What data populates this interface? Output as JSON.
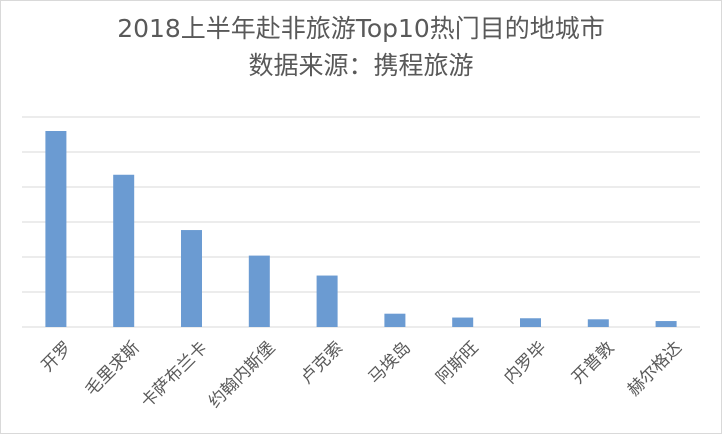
{
  "chart_data": {
    "type": "bar",
    "title": "2018上半年赴非旅游Top10热门目的地城市",
    "subtitle": "数据来源：携程旅游",
    "xlabel": "",
    "ylabel": "",
    "categories": [
      "开罗",
      "毛里求斯",
      "卡萨布兰卡",
      "约翰内斯堡",
      "卢克索",
      "马埃岛",
      "阿斯旺",
      "内罗毕",
      "开普敦",
      "赫尔格达"
    ],
    "values": [
      5.6,
      4.35,
      2.77,
      2.04,
      1.47,
      0.38,
      0.27,
      0.25,
      0.22,
      0.17
    ],
    "ylim": [
      0,
      6
    ],
    "grid": true,
    "legend": "none",
    "colors": {
      "bar": "#6b9bd2",
      "grid": "#d9d9d9",
      "text": "#595959"
    }
  }
}
